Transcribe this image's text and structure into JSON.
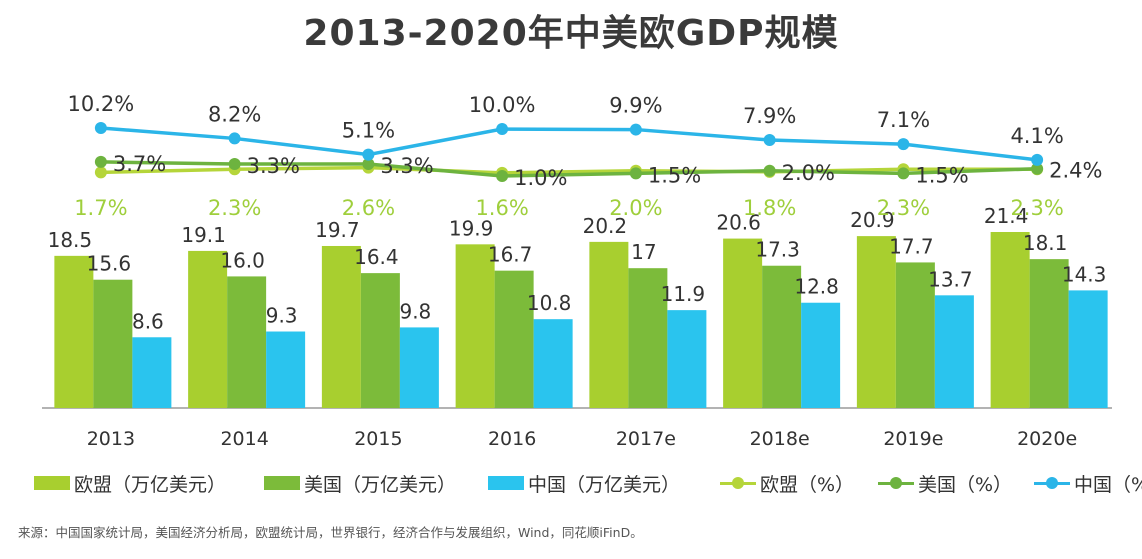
{
  "title": "2013-2020年中美欧GDP规模",
  "source": "来源：中国国家统计局，美国经济分析局，欧盟统计局，世界银行，经济合作与发展组织，Wind，同花顺iFinD。",
  "colors": {
    "eu_bar": "#a8cf2f",
    "us_bar": "#7cbb3a",
    "cn_bar": "#2ac4ee",
    "eu_line": "#b5d53a",
    "us_line": "#6db33f",
    "cn_line": "#2bb5e8",
    "eu_growth_label": "#9fcf3c",
    "axis": "#9a9a9a"
  },
  "chart_data": {
    "type": "bar",
    "categories": [
      "2013",
      "2014",
      "2015",
      "2016",
      "2017e",
      "2018e",
      "2019e",
      "2020e"
    ],
    "series": [
      {
        "name": "欧盟（万亿美元）",
        "kind": "bar",
        "values": [
          18.5,
          19.1,
          19.7,
          19.9,
          20.2,
          20.6,
          20.9,
          21.4
        ],
        "labels": [
          "18.5",
          "19.1",
          "19.7",
          "19.9",
          "20.2",
          "20.6",
          "20.9",
          "21.4"
        ]
      },
      {
        "name": "美国（万亿美元）",
        "kind": "bar",
        "values": [
          15.6,
          16.0,
          16.4,
          16.7,
          17,
          17.3,
          17.7,
          18.1
        ],
        "labels": [
          "15.6",
          "16.0",
          "16.4",
          "16.7",
          "17",
          "17.3",
          "17.7",
          "18.1"
        ]
      },
      {
        "name": "中国（万亿美元）",
        "kind": "bar",
        "values": [
          8.6,
          9.3,
          9.8,
          10.8,
          11.9,
          12.8,
          13.7,
          14.3
        ],
        "labels": [
          "8.6",
          "9.3",
          "9.8",
          "10.8",
          "11.9",
          "12.8",
          "13.7",
          "14.3"
        ]
      },
      {
        "name": "欧盟（%）",
        "kind": "line",
        "values": [
          1.7,
          2.3,
          2.6,
          1.6,
          2.0,
          1.8,
          2.3,
          2.3
        ],
        "labels": [
          "1.7%",
          "2.3%",
          "2.6%",
          "1.6%",
          "2.0%",
          "1.8%",
          "2.3%",
          "2.3%"
        ]
      },
      {
        "name": "美国（%）",
        "kind": "line",
        "values": [
          3.7,
          3.3,
          3.3,
          1.0,
          1.5,
          2.0,
          1.5,
          2.4
        ],
        "labels": [
          "3.7%",
          "3.3%",
          "3.3%",
          "1.0%",
          "1.5%",
          "2.0%",
          "1.5%",
          "2.4%"
        ]
      },
      {
        "name": "中国（%）",
        "kind": "line",
        "values": [
          10.2,
          8.2,
          5.1,
          10.0,
          9.9,
          7.9,
          7.1,
          4.1
        ],
        "labels": [
          "10.2%",
          "8.2%",
          "5.1%",
          "10.0%",
          "9.9%",
          "7.9%",
          "7.1%",
          "4.1%"
        ]
      }
    ],
    "bar_ylim": [
      0,
      25
    ],
    "line_ylim": [
      1,
      10.2
    ],
    "legend_position": "bottom",
    "grid": false
  }
}
